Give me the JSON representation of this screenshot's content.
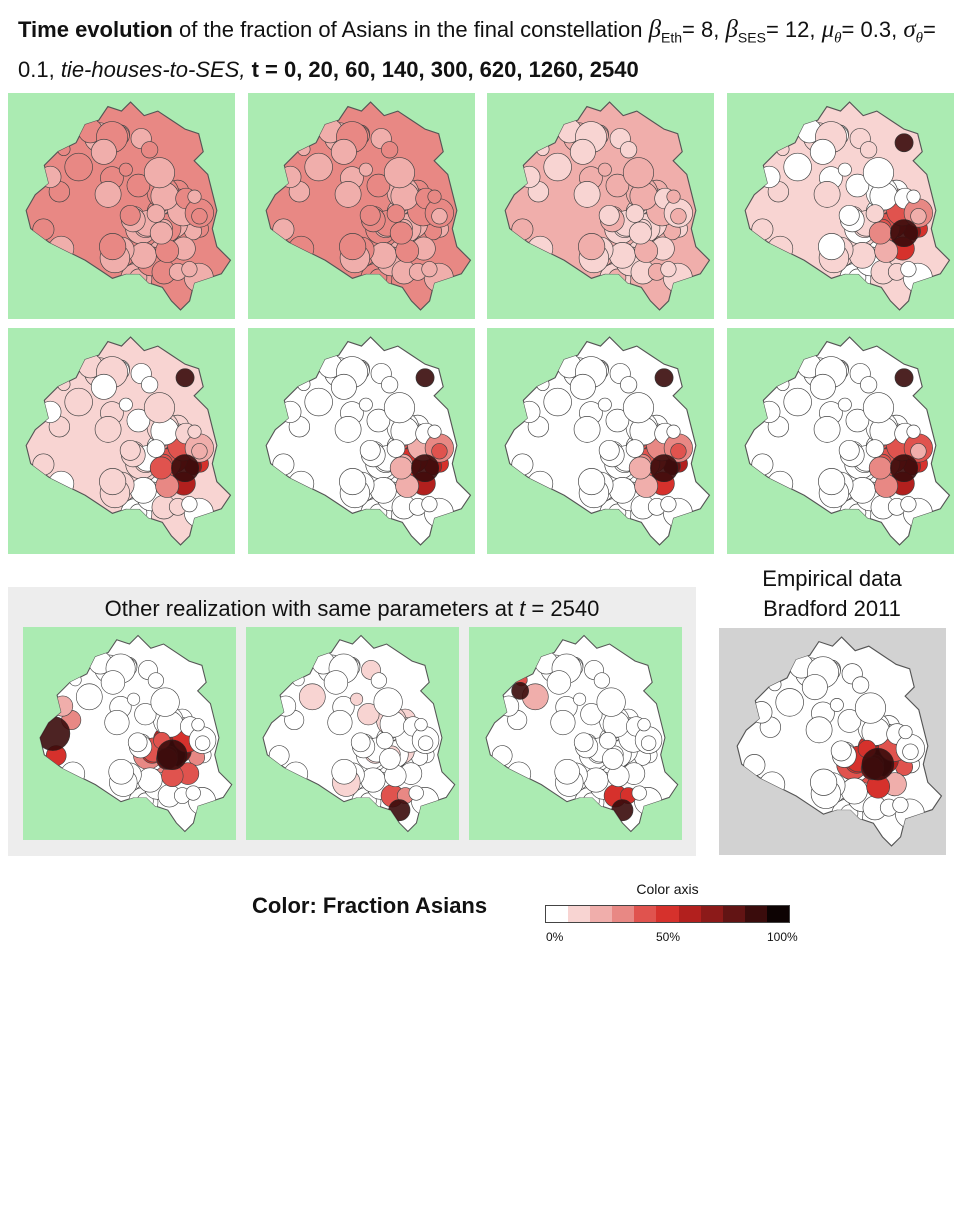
{
  "title": {
    "bold_lead": "Time evolution",
    "text_1": " of the fraction of Asians in the final constellation ",
    "beta": "β",
    "sub_eth": "Eth",
    "eq_eth": "= 8, ",
    "sub_ses": "SES",
    "eq_ses": "= 12, ",
    "mu": "μ",
    "theta": "θ",
    "eq_mu": "= 0.3, ",
    "sigma": "σ",
    "eq_sigma": "= 0.1, ",
    "mode": "tie-houses-to-SES, ",
    "times": "t = 0, 20, 60, 140, 300, 620, 1260, 2540"
  },
  "maps": [
    {
      "label": "t-0",
      "hotspots": [],
      "base": 0.25
    },
    {
      "label": "t-20",
      "hotspots": [],
      "base": 0.25
    },
    {
      "label": "t-60",
      "hotspots": [],
      "base": 0.15
    },
    {
      "label": "t-140",
      "hotspots": [
        "north-east",
        "south-east"
      ],
      "base": 0.05
    },
    {
      "label": "t-300",
      "hotspots": [
        "north-east",
        "south-east"
      ],
      "base": 0.05
    },
    {
      "label": "t-620",
      "hotspots": [
        "north-east",
        "south-east"
      ],
      "base": 0.02
    },
    {
      "label": "t-1260",
      "hotspots": [
        "north-east",
        "south-east"
      ],
      "base": 0.02
    },
    {
      "label": "t-2540",
      "hotspots": [
        "north-east",
        "south-east"
      ],
      "base": 0.02
    }
  ],
  "other": {
    "title_pre": "Other realization with same parameters at ",
    "title_t": "t",
    "title_post": " = 2540"
  },
  "empirical": {
    "line1": "Empirical data",
    "line2": "Bradford 2011"
  },
  "legend": {
    "label": "Color: Fraction Asians",
    "axis_title": "Color axis",
    "tick_0": "0%",
    "tick_50": "50%",
    "tick_100": "100%",
    "colors": [
      "#ffffff",
      "#f8d4d2",
      "#f0aeab",
      "#e88884",
      "#e0534e",
      "#d6312c",
      "#b2201e",
      "#8c1a19",
      "#621414",
      "#3a0c0c",
      "#0d0303"
    ]
  }
}
